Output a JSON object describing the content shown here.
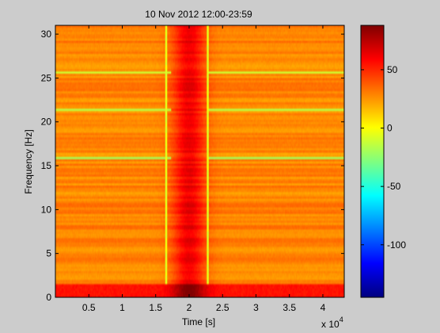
{
  "chart_data": {
    "type": "heatmap",
    "title": "10 Nov 2012 12:00-23:59",
    "xlabel": "Time [s]",
    "ylabel": "Frequency [Hz]",
    "x_exponent_label": "x 10",
    "x_exponent_power": "4",
    "xlim": [
      0,
      43200
    ],
    "ylim": [
      0,
      31
    ],
    "x_ticks": [
      {
        "value": 5000,
        "label": "0.5"
      },
      {
        "value": 10000,
        "label": "1"
      },
      {
        "value": 15000,
        "label": "1.5"
      },
      {
        "value": 20000,
        "label": "2"
      },
      {
        "value": 25000,
        "label": "2.5"
      },
      {
        "value": 30000,
        "label": "3"
      },
      {
        "value": 35000,
        "label": "3.5"
      },
      {
        "value": 40000,
        "label": "4"
      }
    ],
    "y_ticks": [
      {
        "value": 0,
        "label": "0"
      },
      {
        "value": 5,
        "label": "5"
      },
      {
        "value": 10,
        "label": "10"
      },
      {
        "value": 15,
        "label": "15"
      },
      {
        "value": 20,
        "label": "20"
      },
      {
        "value": 25,
        "label": "25"
      },
      {
        "value": 30,
        "label": "30"
      }
    ],
    "colorbar": {
      "colormap": "jet",
      "clim": [
        -145,
        88
      ],
      "ticks": [
        {
          "value": 50,
          "label": "50"
        },
        {
          "value": 0,
          "label": "0"
        },
        {
          "value": -50,
          "label": "-50"
        },
        {
          "value": -100,
          "label": "-100"
        }
      ]
    },
    "background_level": 28,
    "low_frequency_band": {
      "frequency_range": [
        0,
        1.6
      ],
      "level": 55
    },
    "high_power_period": {
      "time_range": [
        17200,
        22600
      ],
      "peak_time": 20000,
      "level": 62
    },
    "transient_events": [
      {
        "time": 16600,
        "level": -5
      },
      {
        "time": 22800,
        "level": -5
      }
    ],
    "narrowband_lines": [
      {
        "frequency": 15.8,
        "level": -20
      },
      {
        "frequency": 21.3,
        "level": -15
      },
      {
        "frequency": 25.7,
        "level": -10
      }
    ]
  }
}
